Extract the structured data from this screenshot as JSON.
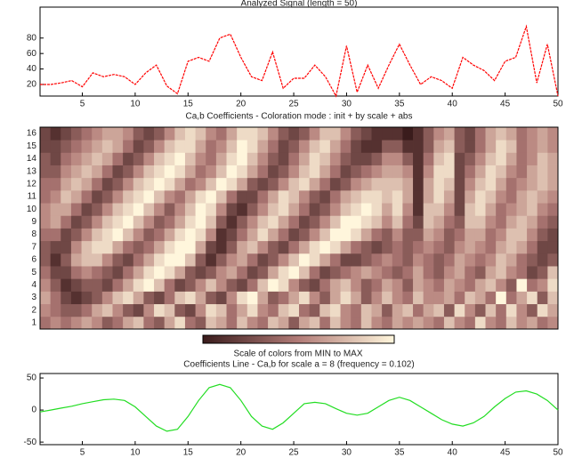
{
  "chart_data": [
    {
      "type": "line",
      "title": "Analyzed Signal (length = 50)",
      "color": "#ff0000",
      "x": [
        1,
        2,
        3,
        4,
        5,
        6,
        7,
        8,
        9,
        10,
        11,
        12,
        13,
        14,
        15,
        16,
        17,
        18,
        19,
        20,
        21,
        22,
        23,
        24,
        25,
        26,
        27,
        28,
        29,
        30,
        31,
        32,
        33,
        34,
        35,
        36,
        37,
        38,
        39,
        40,
        41,
        42,
        43,
        44,
        45,
        46,
        47,
        48,
        49,
        50
      ],
      "values": [
        20,
        20,
        22,
        25,
        17,
        35,
        30,
        33,
        30,
        20,
        35,
        45,
        18,
        8,
        50,
        55,
        50,
        80,
        85,
        55,
        30,
        25,
        62,
        15,
        28,
        28,
        45,
        30,
        5,
        70,
        10,
        45,
        15,
        45,
        72,
        45,
        20,
        30,
        25,
        15,
        55,
        45,
        38,
        25,
        50,
        55,
        95,
        22,
        72,
        5
      ],
      "xlim": [
        1,
        50
      ],
      "xticks": [
        5,
        10,
        15,
        20,
        25,
        30,
        35,
        40,
        45,
        50
      ],
      "ylim": [
        5,
        120
      ],
      "yticks": [
        20,
        40,
        60,
        80
      ]
    },
    {
      "type": "heatmap",
      "title": "Ca,b Coefficients - Coloration mode : init + by scale + abs",
      "colors": [
        "#3a1c1c",
        "#b27c78",
        "#fff6dc"
      ],
      "zlim": [
        0,
        9
      ],
      "y_categories": [
        1,
        2,
        3,
        4,
        5,
        6,
        7,
        8,
        9,
        10,
        11,
        12,
        13,
        14,
        15,
        16
      ],
      "z": [
        [
          4,
          5,
          4,
          5,
          6,
          5,
          3,
          4,
          6,
          7,
          4,
          3,
          6,
          8,
          4,
          3,
          7,
          6,
          4,
          7,
          5,
          4,
          7,
          6,
          3,
          6,
          7,
          4,
          7,
          5,
          4,
          7,
          5,
          4,
          6,
          5,
          6,
          5,
          4,
          7,
          5,
          4,
          8,
          5,
          4,
          7,
          5,
          6,
          4,
          5
        ],
        [
          5,
          4,
          3,
          3,
          4,
          6,
          7,
          5,
          3,
          2,
          5,
          8,
          7,
          3,
          2,
          5,
          8,
          7,
          4,
          6,
          8,
          5,
          4,
          7,
          8,
          4,
          3,
          7,
          8,
          5,
          4,
          7,
          6,
          3,
          6,
          7,
          4,
          6,
          7,
          3,
          8,
          5,
          3,
          7,
          4,
          8,
          5,
          3,
          8,
          6
        ],
        [
          6,
          4,
          2,
          1,
          2,
          3,
          5,
          7,
          8,
          6,
          3,
          2,
          4,
          7,
          8,
          6,
          3,
          2,
          5,
          8,
          9,
          6,
          3,
          4,
          6,
          8,
          5,
          3,
          6,
          8,
          6,
          3,
          5,
          7,
          5,
          4,
          7,
          5,
          5,
          6,
          4,
          7,
          6,
          4,
          9,
          4,
          6,
          8,
          3,
          7
        ],
        [
          5,
          3,
          1,
          2,
          3,
          3,
          2,
          4,
          6,
          8,
          9,
          7,
          4,
          2,
          3,
          5,
          7,
          5,
          3,
          2,
          4,
          7,
          9,
          8,
          5,
          3,
          2,
          4,
          6,
          7,
          5,
          3,
          4,
          6,
          5,
          3,
          6,
          5,
          4,
          6,
          5,
          4,
          6,
          7,
          5,
          3,
          9,
          4,
          5,
          8
        ],
        [
          4,
          2,
          2,
          4,
          5,
          4,
          3,
          2,
          4,
          6,
          8,
          9,
          8,
          6,
          3,
          2,
          3,
          5,
          6,
          4,
          2,
          3,
          6,
          8,
          9,
          7,
          4,
          2,
          3,
          4,
          5,
          6,
          5,
          4,
          3,
          4,
          6,
          4,
          3,
          5,
          6,
          4,
          3,
          6,
          7,
          5,
          4,
          2,
          3,
          7
        ],
        [
          3,
          1,
          3,
          6,
          7,
          7,
          5,
          3,
          2,
          4,
          6,
          8,
          9,
          9,
          7,
          3,
          1,
          3,
          5,
          6,
          4,
          2,
          3,
          5,
          7,
          9,
          8,
          6,
          4,
          2,
          2,
          3,
          4,
          5,
          4,
          3,
          5,
          4,
          3,
          4,
          6,
          5,
          4,
          5,
          7,
          6,
          4,
          3,
          2,
          3
        ],
        [
          3,
          2,
          2,
          5,
          7,
          8,
          8,
          6,
          4,
          3,
          4,
          6,
          8,
          9,
          9,
          6,
          2,
          1,
          3,
          6,
          7,
          5,
          3,
          2,
          4,
          6,
          8,
          9,
          8,
          6,
          4,
          3,
          2,
          3,
          4,
          3,
          4,
          5,
          4,
          3,
          5,
          6,
          5,
          4,
          6,
          7,
          6,
          4,
          2,
          2
        ],
        [
          4,
          4,
          2,
          3,
          5,
          7,
          8,
          9,
          7,
          5,
          3,
          4,
          6,
          8,
          9,
          8,
          5,
          1,
          2,
          4,
          6,
          8,
          6,
          4,
          2,
          3,
          5,
          7,
          9,
          9,
          8,
          6,
          4,
          3,
          5,
          3,
          3,
          6,
          5,
          3,
          4,
          6,
          6,
          4,
          5,
          7,
          7,
          5,
          3,
          2
        ],
        [
          5,
          6,
          4,
          2,
          3,
          5,
          7,
          8,
          9,
          7,
          5,
          3,
          4,
          6,
          8,
          9,
          7,
          3,
          1,
          3,
          5,
          7,
          8,
          6,
          4,
          2,
          3,
          5,
          7,
          9,
          9,
          8,
          7,
          5,
          7,
          4,
          2,
          7,
          6,
          4,
          3,
          7,
          7,
          5,
          4,
          6,
          7,
          6,
          4,
          3
        ],
        [
          5,
          6,
          6,
          4,
          2,
          3,
          5,
          7,
          8,
          9,
          7,
          5,
          3,
          5,
          7,
          9,
          8,
          5,
          2,
          1,
          3,
          5,
          7,
          8,
          6,
          4,
          2,
          3,
          5,
          7,
          8,
          9,
          8,
          6,
          8,
          5,
          1,
          7,
          7,
          5,
          2,
          7,
          8,
          6,
          4,
          5,
          6,
          7,
          5,
          4
        ],
        [
          4,
          5,
          7,
          6,
          4,
          2,
          3,
          5,
          7,
          8,
          9,
          7,
          5,
          4,
          6,
          8,
          9,
          7,
          4,
          2,
          2,
          4,
          6,
          8,
          7,
          5,
          3,
          2,
          4,
          6,
          7,
          8,
          8,
          7,
          8,
          6,
          1,
          6,
          8,
          6,
          2,
          6,
          8,
          7,
          5,
          4,
          6,
          7,
          6,
          5
        ],
        [
          4,
          4,
          6,
          7,
          6,
          4,
          2,
          3,
          5,
          7,
          8,
          9,
          8,
          6,
          4,
          5,
          7,
          9,
          8,
          6,
          3,
          2,
          3,
          5,
          7,
          8,
          6,
          4,
          2,
          3,
          5,
          6,
          7,
          7,
          7,
          6,
          1,
          6,
          8,
          7,
          2,
          5,
          7,
          8,
          6,
          4,
          5,
          6,
          7,
          6
        ],
        [
          3,
          3,
          5,
          6,
          7,
          6,
          4,
          2,
          3,
          5,
          7,
          8,
          9,
          8,
          6,
          4,
          5,
          7,
          9,
          8,
          6,
          4,
          2,
          3,
          5,
          7,
          8,
          6,
          4,
          2,
          3,
          4,
          5,
          6,
          6,
          5,
          1,
          5,
          8,
          8,
          2,
          4,
          6,
          8,
          7,
          5,
          4,
          6,
          7,
          6
        ],
        [
          3,
          2,
          4,
          5,
          6,
          7,
          6,
          4,
          2,
          3,
          5,
          7,
          8,
          9,
          7,
          5,
          4,
          6,
          8,
          9,
          7,
          5,
          3,
          2,
          4,
          6,
          8,
          7,
          5,
          3,
          2,
          2,
          3,
          5,
          5,
          3,
          1,
          4,
          7,
          8,
          2,
          3,
          5,
          7,
          8,
          6,
          4,
          5,
          7,
          6
        ],
        [
          2,
          2,
          3,
          4,
          5,
          6,
          7,
          6,
          4,
          2,
          3,
          5,
          7,
          8,
          8,
          6,
          4,
          5,
          7,
          9,
          8,
          6,
          4,
          2,
          3,
          5,
          7,
          8,
          6,
          4,
          2,
          1,
          1,
          3,
          3,
          1,
          1,
          3,
          6,
          7,
          3,
          2,
          4,
          6,
          8,
          7,
          4,
          5,
          6,
          5
        ],
        [
          2,
          1,
          2,
          3,
          4,
          5,
          6,
          6,
          5,
          3,
          2,
          3,
          5,
          7,
          8,
          7,
          5,
          4,
          6,
          8,
          8,
          7,
          5,
          3,
          2,
          3,
          5,
          7,
          7,
          5,
          3,
          2,
          1,
          1,
          1,
          0,
          1,
          3,
          5,
          6,
          3,
          2,
          4,
          6,
          7,
          6,
          4,
          5,
          6,
          5
        ]
      ],
      "colorbar_label": "Scale of colors from MIN to MAX"
    },
    {
      "type": "line",
      "title": "Coefficients Line - Ca,b for scale a = 8 (frequency = 0.102)",
      "color": "#22dd22",
      "x": [
        1,
        2,
        3,
        4,
        5,
        6,
        7,
        8,
        9,
        10,
        11,
        12,
        13,
        14,
        15,
        16,
        17,
        18,
        19,
        20,
        21,
        22,
        23,
        24,
        25,
        26,
        27,
        28,
        29,
        30,
        31,
        32,
        33,
        34,
        35,
        36,
        37,
        38,
        39,
        40,
        41,
        42,
        43,
        44,
        45,
        46,
        47,
        48,
        49,
        50
      ],
      "values": [
        -3,
        0,
        3,
        6,
        10,
        13,
        16,
        17,
        15,
        5,
        -10,
        -25,
        -33,
        -30,
        -10,
        15,
        35,
        40,
        35,
        15,
        -10,
        -25,
        -30,
        -20,
        -5,
        10,
        12,
        10,
        2,
        -5,
        -8,
        -5,
        5,
        15,
        20,
        15,
        5,
        -5,
        -15,
        -22,
        -25,
        -20,
        -10,
        5,
        18,
        28,
        30,
        25,
        15,
        0
      ],
      "xlim": [
        1,
        50
      ],
      "xticks": [
        5,
        10,
        15,
        20,
        25,
        30,
        35,
        40,
        45,
        50
      ],
      "ylim": [
        -54,
        57
      ],
      "yticks": [
        -50,
        0,
        50
      ]
    }
  ]
}
